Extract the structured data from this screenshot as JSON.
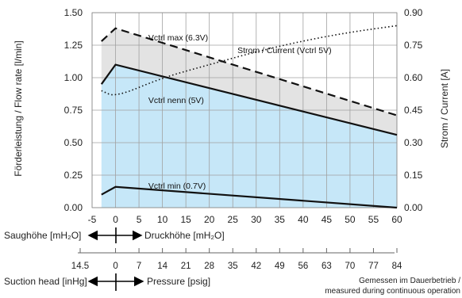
{
  "chart_data": {
    "type": "area",
    "x_axis": {
      "ticks": [
        -5,
        0,
        5,
        10,
        15,
        20,
        25,
        30,
        35,
        40,
        45,
        50,
        55,
        60
      ],
      "tick_labels": [
        "-5",
        "0",
        "5",
        "10",
        "15",
        "20",
        "25",
        "30",
        "35",
        "40",
        "45",
        "50",
        "55",
        "60"
      ],
      "range": [
        -5,
        60
      ]
    },
    "y_left": {
      "label": "Förderleistung / Flow rate [l/min]",
      "range": [
        0,
        1.5
      ],
      "ticks": [
        0,
        0.25,
        0.5,
        0.75,
        1.0,
        1.25,
        1.5
      ],
      "tick_labels": [
        "0.00",
        "0.25",
        "0.50",
        "0.75",
        "1.00",
        "1.25",
        "1.50"
      ]
    },
    "y_right": {
      "label": "Strom / Current [A]",
      "range": [
        0,
        0.9
      ],
      "ticks": [
        0,
        0.15,
        0.3,
        0.45,
        0.6,
        0.75,
        0.9
      ],
      "tick_labels": [
        "0.00",
        "0.15",
        "0.30",
        "0.45",
        "0.60",
        "0.75",
        "0.90"
      ]
    },
    "grid": true,
    "series": [
      {
        "name": "Vctrl max (6.3V)",
        "style": "dashed",
        "axis": "left",
        "x": [
          -3,
          0,
          60
        ],
        "y": [
          1.28,
          1.38,
          0.71
        ]
      },
      {
        "name": "Vctrl nenn (5V)",
        "style": "solid",
        "axis": "left",
        "x": [
          -3,
          0,
          60
        ],
        "y": [
          0.95,
          1.1,
          0.56
        ]
      },
      {
        "name": "Vctrl min (0.7V)",
        "style": "solid",
        "axis": "left",
        "x": [
          -3,
          0,
          60
        ],
        "y": [
          0.1,
          0.16,
          0.0
        ]
      },
      {
        "name": "Strom / Current (Vctrl 5V)",
        "style": "dotted",
        "axis": "right",
        "x": [
          -3,
          0,
          10,
          20,
          30,
          40,
          50,
          60
        ],
        "y": [
          0.54,
          0.51,
          0.6,
          0.66,
          0.72,
          0.77,
          0.81,
          0.84
        ]
      }
    ],
    "secondary_axis": {
      "left_label": "Saughöhe [mH₂O]",
      "right_label": "Druckhöhe [mH₂O]"
    },
    "bottom_axis": {
      "ticks": [
        -14.5,
        0,
        7,
        14,
        21,
        28,
        35,
        42,
        49,
        56,
        63,
        70,
        77,
        84
      ],
      "tick_labels": [
        "14.5",
        "0",
        "7",
        "14",
        "21",
        "28",
        "35",
        "42",
        "49",
        "56",
        "63",
        "70",
        "77",
        "84"
      ],
      "left_label": "Suction head [inHg]",
      "right_label": "Pressure [psig]"
    },
    "note_line1": "Gemessen im Dauerbetrieb /",
    "note_line2": "measured during continuous operation"
  }
}
